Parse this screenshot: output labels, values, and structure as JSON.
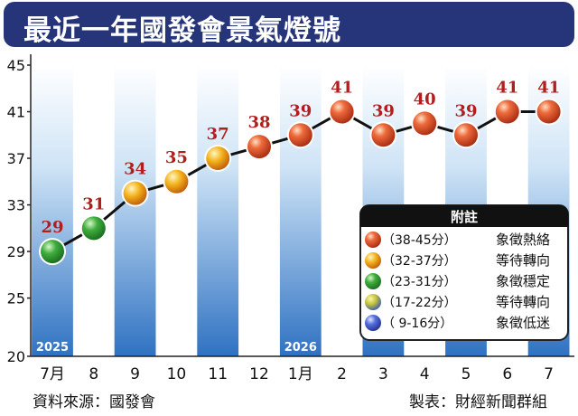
{
  "title": "最近一年國發會景氣燈號",
  "source": "資料來源：國發會",
  "maker": "製表：財經新聞群組",
  "colors": {
    "red": "#d23a1c",
    "yellow_red": "#ee9a10",
    "green": "#2f9c34",
    "yellow_blue": "#b8c43a",
    "blue": "#3b55c8",
    "score_label": "#b01e1e",
    "title_bg": "#26357a"
  },
  "legend": {
    "title": "附註",
    "items": [
      {
        "range": "（38-45分）",
        "label": "象徵熱絡",
        "color": "red"
      },
      {
        "range": "（32-37分）",
        "label": "等待轉向",
        "color": "yellow_red"
      },
      {
        "range": "（23-31分）",
        "label": "象徵穩定",
        "color": "green"
      },
      {
        "range": "（17-22分）",
        "label": "等待轉向",
        "color": "yellow_blue"
      },
      {
        "range": "（ 9-16分）",
        "label": "象徵低迷",
        "color": "blue"
      }
    ]
  },
  "chart_data": {
    "type": "line",
    "categories": [
      "7月",
      "8",
      "9",
      "10",
      "11",
      "12",
      "1月",
      "2",
      "3",
      "4",
      "5",
      "6",
      "7"
    ],
    "values": [
      29,
      31,
      34,
      35,
      37,
      38,
      39,
      41,
      39,
      40,
      39,
      41,
      41
    ],
    "point_colors": [
      "green",
      "green",
      "yellow_red",
      "yellow_red",
      "yellow_red",
      "red",
      "red",
      "red",
      "red",
      "red",
      "red",
      "red",
      "red"
    ],
    "y_ticks": [
      20,
      25,
      29,
      33,
      37,
      41,
      45
    ],
    "ylim": [
      20,
      45
    ],
    "year_labels": [
      {
        "index": 0,
        "text": "2025"
      },
      {
        "index": 6,
        "text": "2026"
      }
    ],
    "title": "",
    "xlabel": "",
    "ylabel": "",
    "grid": false
  }
}
